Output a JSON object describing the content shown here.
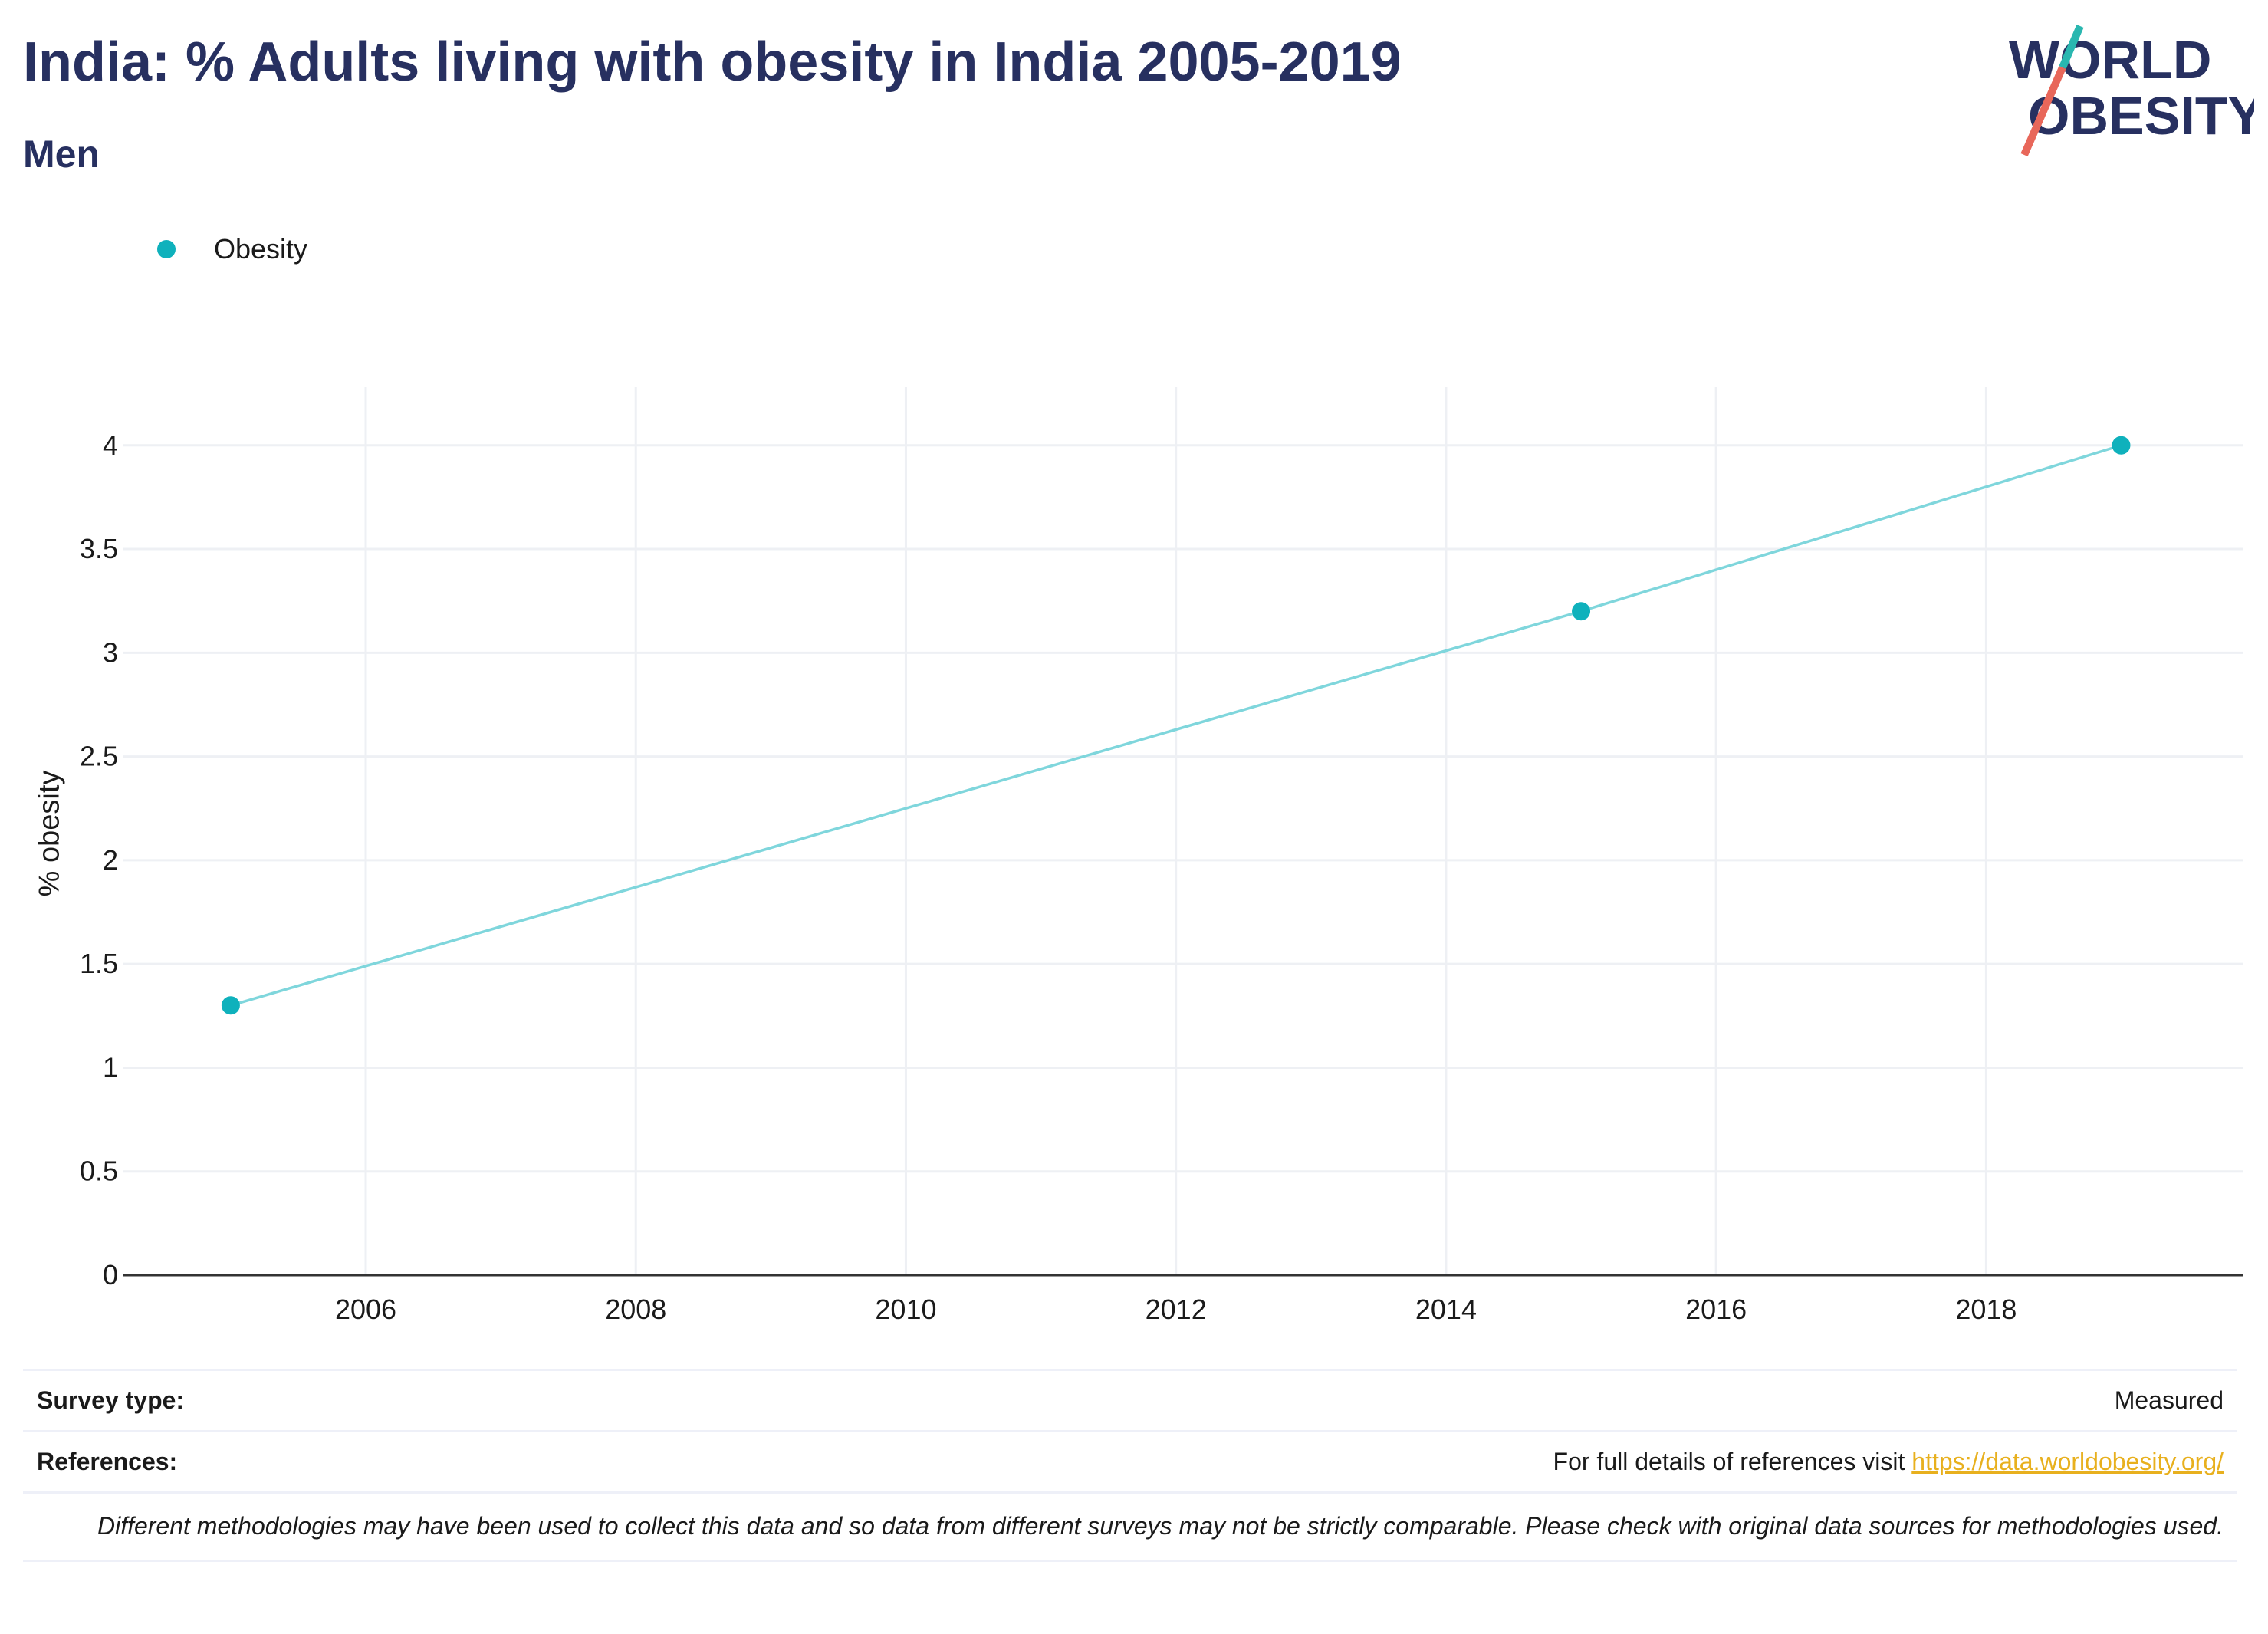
{
  "title": "India: % Adults living with obesity in India 2005-2019",
  "subtitle": "Men",
  "logo": {
    "line1": "WORLD",
    "line2": "OBESITY",
    "text_color": "#273060",
    "slash_top_color": "#2ab7b0",
    "slash_bottom_color": "#e8675a"
  },
  "colors": {
    "marker": "#0fb1bc",
    "line": "#7fd6dc",
    "grid": "#eef0f4",
    "axis": "#333333"
  },
  "chart_data": {
    "type": "line",
    "title": "India: % Adults living with obesity in India 2005-2019",
    "subtitle": "Men",
    "xlabel": "",
    "ylabel": "% obesity",
    "xlim": [
      2004.2,
      2019.9
    ],
    "ylim": [
      0,
      4.28
    ],
    "xticks": [
      2006,
      2008,
      2010,
      2012,
      2014,
      2016,
      2018
    ],
    "yticks": [
      0,
      0.5,
      1,
      1.5,
      2,
      2.5,
      3,
      3.5,
      4
    ],
    "ytick_labels": [
      "0",
      "0.5",
      "1",
      "1.5",
      "2",
      "2.5",
      "3",
      "3.5",
      "4"
    ],
    "grid": true,
    "legend": "top-left",
    "series": [
      {
        "name": "Obesity",
        "x": [
          2005,
          2015,
          2019
        ],
        "values": [
          1.3,
          3.2,
          4.0
        ]
      }
    ]
  },
  "info": {
    "survey_type_label": "Survey type:",
    "survey_type_value": "Measured",
    "references_label": "References:",
    "references_text": "For full details of references visit ",
    "references_link": "https://data.worldobesity.org/",
    "disclaimer": "Different methodologies may have been used to collect this data and so data from different surveys may not be strictly comparable. Please check with original data sources for methodologies used."
  }
}
